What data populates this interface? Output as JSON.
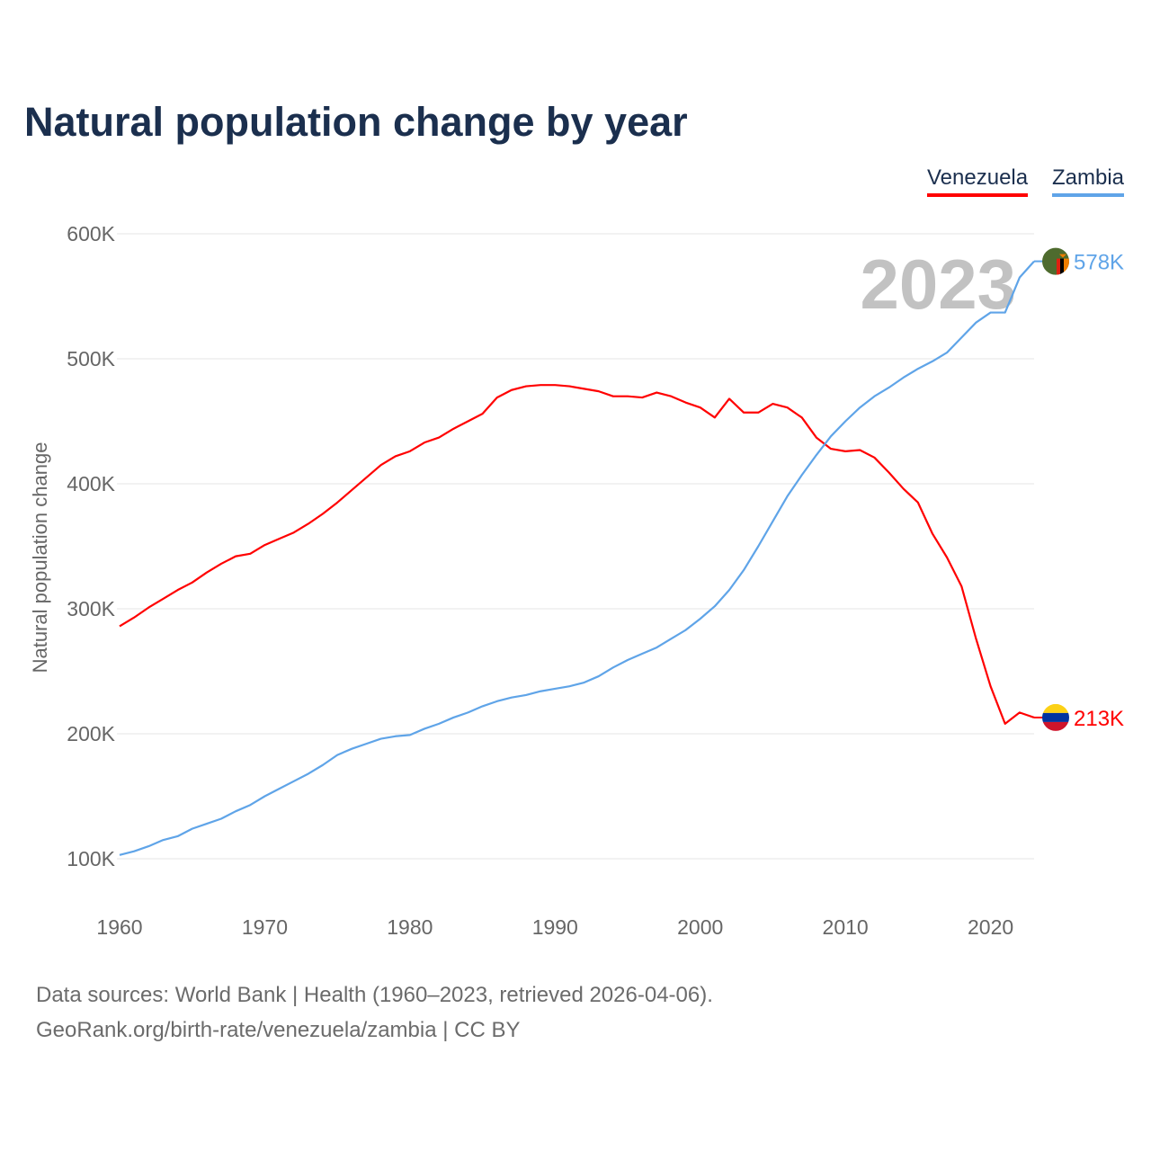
{
  "chart_data": {
    "type": "line",
    "title": "Natural population change by year",
    "xlabel": "",
    "ylabel": "Natural population change",
    "xlim": [
      1960,
      2023
    ],
    "ylim": [
      100000,
      600000
    ],
    "grid": true,
    "legend_placement": "top-right",
    "x_ticks": [
      "1960",
      "1970",
      "1980",
      "1990",
      "2000",
      "2010",
      "2020"
    ],
    "y_ticks": [
      {
        "value": 100000,
        "label": "100K"
      },
      {
        "value": 200000,
        "label": "200K"
      },
      {
        "value": 300000,
        "label": "300K"
      },
      {
        "value": 400000,
        "label": "400K"
      },
      {
        "value": 500000,
        "label": "500K"
      },
      {
        "value": 600000,
        "label": "600K"
      }
    ],
    "year_watermark": "2023",
    "start_year": 1960,
    "series": [
      {
        "name": "Venezuela",
        "color": "#ff0000",
        "flag": "venezuela-flag",
        "end_label": "213K",
        "values": [
          286,
          293,
          301,
          308,
          315,
          321,
          329,
          336,
          342,
          344,
          351,
          356,
          361,
          368,
          376,
          385,
          395,
          405,
          415,
          422,
          426,
          433,
          437,
          444,
          450,
          456,
          469,
          475,
          478,
          479,
          479,
          478,
          476,
          474,
          470,
          470,
          469,
          473,
          470,
          465,
          461,
          453,
          468,
          457,
          457,
          464,
          461,
          453,
          437,
          428,
          426,
          427,
          421,
          409,
          396,
          385,
          360,
          341,
          318,
          276,
          238,
          208,
          217,
          213
        ]
      },
      {
        "name": "Zambia",
        "color": "#5fa4e8",
        "flag": "zambia-flag",
        "end_label": "578K",
        "values": [
          103,
          106,
          110,
          115,
          118,
          124,
          128,
          132,
          138,
          143,
          150,
          156,
          162,
          168,
          175,
          183,
          188,
          192,
          196,
          198,
          199,
          204,
          208,
          213,
          217,
          222,
          226,
          229,
          231,
          234,
          236,
          238,
          241,
          246,
          253,
          259,
          264,
          269,
          276,
          283,
          292,
          302,
          315,
          331,
          350,
          370,
          390,
          407,
          423,
          438,
          450,
          461,
          470,
          477,
          485,
          492,
          498,
          505,
          517,
          529,
          537,
          537,
          565,
          578
        ]
      }
    ],
    "value_unit": "thousands"
  },
  "footer": {
    "line1": "Data sources: World Bank | Health (1960–2023, retrieved 2026-04-06).",
    "line2": "GeoRank.org/birth-rate/venezuela/zambia | CC BY"
  }
}
